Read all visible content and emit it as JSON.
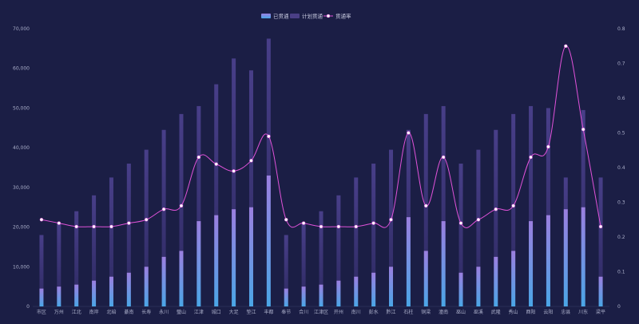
{
  "chart_data": {
    "type": "bar",
    "title": "",
    "categories": [
      "市区",
      "万州",
      "江北",
      "南岸",
      "北碚",
      "綦南",
      "长寿",
      "永川",
      "璧山",
      "江津",
      "城口",
      "大足",
      "垫江",
      "丰都",
      "奉节",
      "合川",
      "江津区",
      "开州",
      "南川",
      "彭水",
      "黔江",
      "石柱",
      "铜梁",
      "潼南",
      "巫山",
      "巫溪",
      "武隆",
      "秀山",
      "酉阳",
      "云阳",
      "忠县",
      "川东",
      "梁平"
    ],
    "series": [
      {
        "name": "已贯通",
        "kind": "bar",
        "axis": "left",
        "values": [
          4500,
          5000,
          5500,
          6500,
          7500,
          8500,
          10000,
          12500,
          14000,
          21500,
          23000,
          24500,
          25000,
          33000,
          4500,
          5000,
          5500,
          6500,
          7500,
          8500,
          10000,
          22500,
          14000,
          21500,
          8500,
          10000,
          12500,
          14000,
          21500,
          23000,
          24500,
          25000,
          7500
        ]
      },
      {
        "name": "计划贯通",
        "kind": "bar",
        "axis": "left",
        "values": [
          18000,
          21000,
          24000,
          28000,
          32500,
          36000,
          39500,
          44500,
          48500,
          50500,
          56000,
          62500,
          59500,
          67500,
          18000,
          21000,
          24000,
          28000,
          32500,
          36000,
          39500,
          44500,
          48500,
          50500,
          36000,
          39500,
          44500,
          48500,
          50500,
          50000,
          32500,
          49500,
          32500
        ]
      },
      {
        "name": "贯通率",
        "kind": "line",
        "axis": "right",
        "values": [
          0.25,
          0.24,
          0.23,
          0.23,
          0.23,
          0.24,
          0.25,
          0.28,
          0.29,
          0.43,
          0.41,
          0.39,
          0.42,
          0.49,
          0.25,
          0.24,
          0.23,
          0.23,
          0.23,
          0.24,
          0.25,
          0.5,
          0.29,
          0.43,
          0.24,
          0.25,
          0.28,
          0.29,
          0.43,
          0.46,
          0.75,
          0.51,
          0.23
        ]
      }
    ],
    "y_left": {
      "min": 0,
      "max": 70000,
      "ticks": [
        "0",
        "10,000",
        "20,000",
        "30,000",
        "40,000",
        "50,000",
        "60,000",
        "70,000"
      ]
    },
    "y_right": {
      "min": 0,
      "max": 0.8,
      "ticks": [
        "0",
        "0.1",
        "0.2",
        "0.3",
        "0.4",
        "0.5",
        "0.6",
        "0.7",
        "0.8"
      ]
    },
    "grid": false,
    "legend_position": "top-center",
    "colors": {
      "background": "#1b1e45",
      "bar_actual_top": "#9b7fe0",
      "bar_actual_bottom": "#4aa6e6",
      "bar_plan": "#4a3f86",
      "line": "#e052d9",
      "point": "#ffffff",
      "axis_text": "#a9adc8",
      "legend_text": "#c8cbe0"
    }
  }
}
